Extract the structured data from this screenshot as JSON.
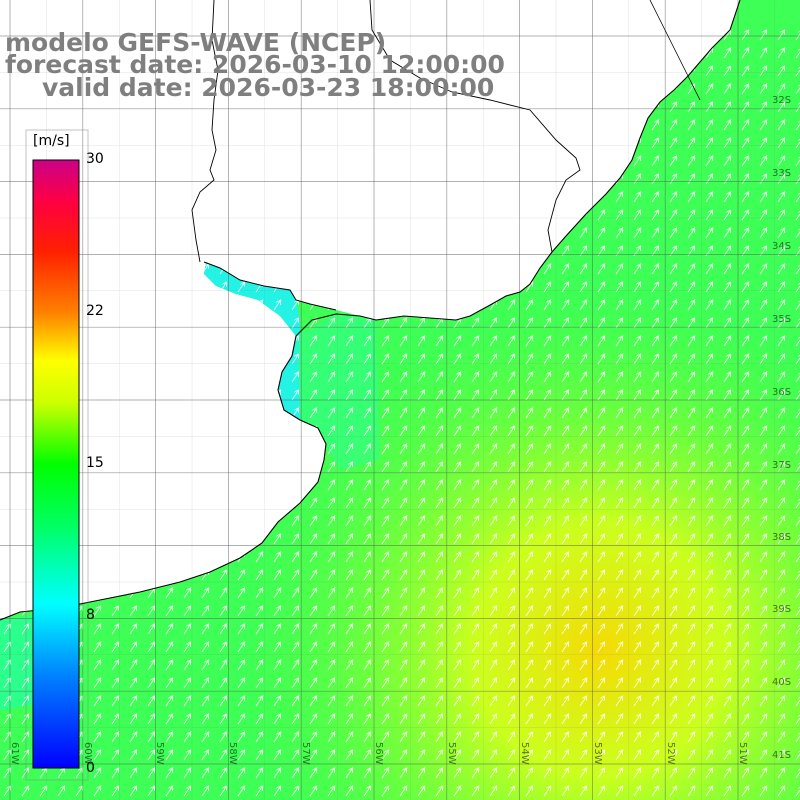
{
  "title": {
    "line1": "modelo GEFS-WAVE (NCEP)",
    "line2": "forecast date: 2026-03-10 12:00:00",
    "line3": "valid date: 2026-03-23 18:00:00"
  },
  "colorbar": {
    "unit": "[m/s]",
    "ticks": [
      "30",
      "22",
      "15",
      "8",
      "0"
    ],
    "tick_values": [
      30,
      22,
      15,
      8,
      0
    ],
    "range": [
      0,
      30
    ],
    "colors": [
      "#0000ff",
      "#00ffff",
      "#00ff00",
      "#ffff00",
      "#ff8000",
      "#ff0000",
      "#cc0088"
    ]
  },
  "latitude_labels": [
    "32S",
    "33S",
    "34S",
    "35S",
    "36S",
    "37S",
    "38S",
    "39S",
    "40S",
    "41S"
  ],
  "longitude_labels": [
    "61W",
    "60W",
    "59W",
    "58W",
    "57W",
    "56W",
    "55W",
    "54W",
    "53W",
    "52W",
    "51W"
  ],
  "field": {
    "variable": "wind speed",
    "nearshore_value_ms": 9,
    "coastal_value_ms": 13,
    "offshore_max_value_ms": 16.5,
    "wind_direction": "from south-west (arrows pointing north-east)"
  }
}
